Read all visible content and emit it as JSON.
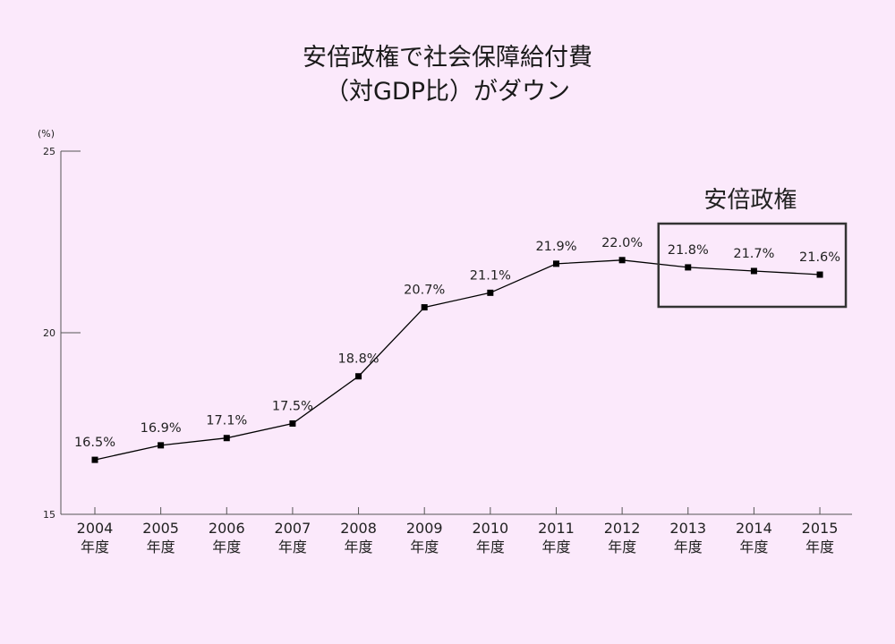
{
  "title": {
    "line1": "安倍政権で社会保障給付費",
    "line2": "（対GDP比）がダウン"
  },
  "chart_data": {
    "type": "line",
    "title": "安倍政権で社会保障給付費（対GDP比）がダウン",
    "ylabel": "(%)",
    "xlabel": "",
    "ylim": [
      15,
      25
    ],
    "yticks": [
      15,
      20,
      25
    ],
    "x": [
      "2004",
      "2005",
      "2006",
      "2007",
      "2008",
      "2009",
      "2010",
      "2011",
      "2012",
      "2013",
      "2014",
      "2015"
    ],
    "x_suffix": "年度",
    "series": [
      {
        "values": [
          16.5,
          16.9,
          17.1,
          17.5,
          18.8,
          20.7,
          21.1,
          21.9,
          22.0,
          21.8,
          21.7,
          21.6
        ],
        "labels": [
          "16.5%",
          "16.9%",
          "17.1%",
          "17.5%",
          "18.8%",
          "20.7%",
          "21.1%",
          "21.9%",
          "22.0%",
          "21.8%",
          "21.7%",
          "21.6%"
        ]
      }
    ],
    "annotation": {
      "text": "安倍政権",
      "from": "2013",
      "to": "2015"
    },
    "grid": false,
    "colors": {
      "line": "#000000",
      "background": "#fbe9fb",
      "box": "#333333"
    }
  }
}
